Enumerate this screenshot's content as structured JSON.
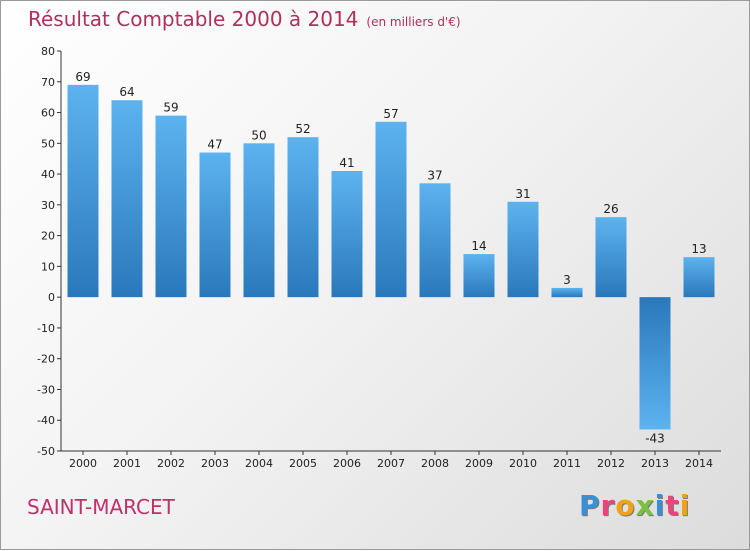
{
  "header": {
    "title": "Résultat Comptable 2000 à 2014",
    "subtitle": "(en milliers d'€)"
  },
  "footer": {
    "city": "SAINT-MARCET",
    "logo_letters": [
      "P",
      "r",
      "o",
      "x",
      "i",
      "t",
      "i"
    ],
    "logo_colors": [
      "#3b8fd6",
      "#e8457a",
      "#f2a21a",
      "#7cc242",
      "#3b8fd6",
      "#e8457a",
      "#f2a21a"
    ]
  },
  "colors": {
    "bar_light": "#5cb3ee",
    "bar_dark": "#2a78bc",
    "title": "#b0305a"
  },
  "chart_data": {
    "type": "bar",
    "title": "Résultat Comptable 2000 à 2014",
    "subtitle": "(en milliers d'€)",
    "xlabel": "",
    "ylabel": "",
    "categories": [
      "2000",
      "2001",
      "2002",
      "2003",
      "2004",
      "2005",
      "2006",
      "2007",
      "2008",
      "2009",
      "2010",
      "2011",
      "2012",
      "2013",
      "2014"
    ],
    "values": [
      69,
      64,
      59,
      47,
      50,
      52,
      41,
      57,
      37,
      14,
      31,
      3,
      26,
      -43,
      13
    ],
    "ylim": [
      -50,
      80
    ],
    "yticks": [
      -50,
      -40,
      -30,
      -20,
      -10,
      0,
      10,
      20,
      30,
      40,
      50,
      60,
      70,
      80
    ],
    "grid": false,
    "legend": "none"
  }
}
